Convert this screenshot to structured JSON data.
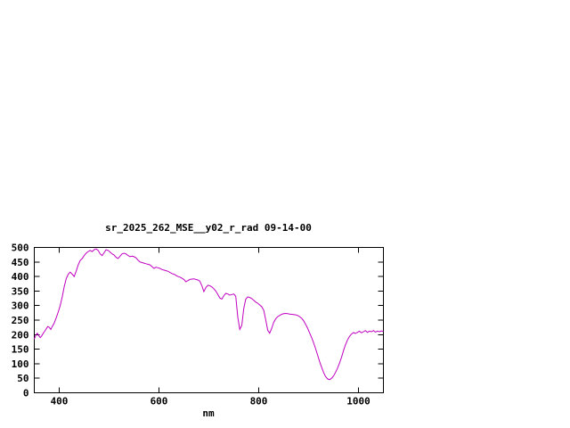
{
  "page": {
    "background": "#ffffff"
  },
  "chart_data": {
    "type": "line",
    "title": "sr_2025_262_MSE__y02_r_rad 09-14-00",
    "xlabel": "nm",
    "ylabel": "",
    "xlim": [
      350,
      1050
    ],
    "ylim": [
      0,
      500
    ],
    "xticks": [
      400,
      600,
      800,
      1000
    ],
    "yticks": [
      0,
      50,
      100,
      150,
      200,
      250,
      300,
      350,
      400,
      450,
      500
    ],
    "grid": false,
    "legend": "none",
    "line_color": "#c000c0",
    "border_color": "#000000",
    "series": [
      {
        "name": "sr_2025_262_MSE__y02_r_rad",
        "points": [
          [
            350,
            185
          ],
          [
            353,
            198
          ],
          [
            356,
            205
          ],
          [
            359,
            196
          ],
          [
            362,
            190
          ],
          [
            365,
            196
          ],
          [
            368,
            205
          ],
          [
            371,
            212
          ],
          [
            374,
            220
          ],
          [
            377,
            228
          ],
          [
            380,
            225
          ],
          [
            383,
            218
          ],
          [
            386,
            228
          ],
          [
            390,
            240
          ],
          [
            394,
            258
          ],
          [
            398,
            278
          ],
          [
            402,
            300
          ],
          [
            406,
            330
          ],
          [
            410,
            365
          ],
          [
            414,
            392
          ],
          [
            418,
            408
          ],
          [
            422,
            415
          ],
          [
            426,
            408
          ],
          [
            430,
            400
          ],
          [
            434,
            418
          ],
          [
            438,
            440
          ],
          [
            442,
            455
          ],
          [
            446,
            462
          ],
          [
            450,
            472
          ],
          [
            454,
            480
          ],
          [
            458,
            486
          ],
          [
            462,
            490
          ],
          [
            466,
            486
          ],
          [
            470,
            492
          ],
          [
            474,
            495
          ],
          [
            478,
            490
          ],
          [
            482,
            478
          ],
          [
            486,
            472
          ],
          [
            490,
            482
          ],
          [
            494,
            492
          ],
          [
            498,
            490
          ],
          [
            502,
            484
          ],
          [
            506,
            478
          ],
          [
            510,
            474
          ],
          [
            514,
            466
          ],
          [
            518,
            462
          ],
          [
            522,
            470
          ],
          [
            526,
            478
          ],
          [
            530,
            480
          ],
          [
            534,
            478
          ],
          [
            538,
            472
          ],
          [
            542,
            468
          ],
          [
            546,
            470
          ],
          [
            550,
            468
          ],
          [
            554,
            464
          ],
          [
            558,
            456
          ],
          [
            562,
            450
          ],
          [
            566,
            448
          ],
          [
            570,
            446
          ],
          [
            574,
            444
          ],
          [
            578,
            442
          ],
          [
            582,
            440
          ],
          [
            586,
            434
          ],
          [
            590,
            428
          ],
          [
            594,
            432
          ],
          [
            598,
            430
          ],
          [
            602,
            428
          ],
          [
            606,
            424
          ],
          [
            610,
            422
          ],
          [
            614,
            420
          ],
          [
            618,
            418
          ],
          [
            622,
            414
          ],
          [
            626,
            410
          ],
          [
            630,
            408
          ],
          [
            634,
            404
          ],
          [
            638,
            400
          ],
          [
            642,
            398
          ],
          [
            646,
            394
          ],
          [
            650,
            390
          ],
          [
            654,
            382
          ],
          [
            658,
            386
          ],
          [
            662,
            390
          ],
          [
            666,
            391
          ],
          [
            670,
            392
          ],
          [
            674,
            390
          ],
          [
            678,
            388
          ],
          [
            682,
            384
          ],
          [
            686,
            368
          ],
          [
            690,
            348
          ],
          [
            694,
            362
          ],
          [
            698,
            370
          ],
          [
            702,
            368
          ],
          [
            706,
            364
          ],
          [
            710,
            358
          ],
          [
            714,
            350
          ],
          [
            718,
            338
          ],
          [
            722,
            326
          ],
          [
            726,
            322
          ],
          [
            730,
            334
          ],
          [
            734,
            342
          ],
          [
            738,
            340
          ],
          [
            742,
            336
          ],
          [
            746,
            338
          ],
          [
            750,
            340
          ],
          [
            754,
            332
          ],
          [
            758,
            260
          ],
          [
            762,
            218
          ],
          [
            766,
            232
          ],
          [
            770,
            290
          ],
          [
            774,
            322
          ],
          [
            778,
            330
          ],
          [
            782,
            328
          ],
          [
            786,
            324
          ],
          [
            790,
            318
          ],
          [
            794,
            312
          ],
          [
            798,
            308
          ],
          [
            802,
            302
          ],
          [
            806,
            296
          ],
          [
            810,
            284
          ],
          [
            814,
            252
          ],
          [
            818,
            215
          ],
          [
            822,
            205
          ],
          [
            826,
            222
          ],
          [
            830,
            242
          ],
          [
            834,
            254
          ],
          [
            838,
            262
          ],
          [
            842,
            266
          ],
          [
            846,
            270
          ],
          [
            850,
            272
          ],
          [
            854,
            273
          ],
          [
            858,
            272
          ],
          [
            862,
            271
          ],
          [
            866,
            270
          ],
          [
            870,
            269
          ],
          [
            874,
            268
          ],
          [
            878,
            266
          ],
          [
            882,
            262
          ],
          [
            886,
            256
          ],
          [
            890,
            248
          ],
          [
            894,
            236
          ],
          [
            898,
            222
          ],
          [
            902,
            206
          ],
          [
            906,
            190
          ],
          [
            910,
            172
          ],
          [
            914,
            152
          ],
          [
            918,
            130
          ],
          [
            922,
            108
          ],
          [
            926,
            88
          ],
          [
            930,
            70
          ],
          [
            934,
            56
          ],
          [
            938,
            48
          ],
          [
            942,
            45
          ],
          [
            946,
            50
          ],
          [
            950,
            58
          ],
          [
            954,
            70
          ],
          [
            958,
            85
          ],
          [
            962,
            102
          ],
          [
            966,
            122
          ],
          [
            970,
            145
          ],
          [
            974,
            165
          ],
          [
            978,
            182
          ],
          [
            982,
            194
          ],
          [
            986,
            202
          ],
          [
            990,
            207
          ],
          [
            994,
            204
          ],
          [
            998,
            208
          ],
          [
            1002,
            212
          ],
          [
            1006,
            206
          ],
          [
            1010,
            210
          ],
          [
            1014,
            214
          ],
          [
            1018,
            208
          ],
          [
            1022,
            212
          ],
          [
            1026,
            210
          ],
          [
            1030,
            214
          ],
          [
            1034,
            209
          ],
          [
            1038,
            212
          ],
          [
            1042,
            210
          ],
          [
            1046,
            213
          ],
          [
            1050,
            211
          ]
        ]
      }
    ]
  }
}
